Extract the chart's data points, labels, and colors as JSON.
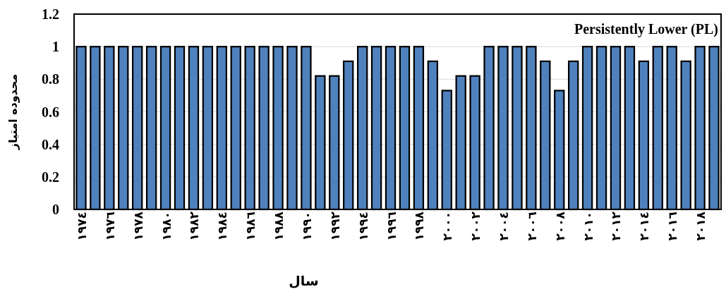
{
  "chart_data": {
    "type": "bar",
    "title": "Persistently Lower (PL)",
    "xlabel": "سال",
    "ylabel": "محدوده امتیاز",
    "categories": [
      "١٩٧٤",
      null,
      "١٩٧٦",
      null,
      "١٩٧٨",
      null,
      "١٩٨٠",
      null,
      "١٩٨٢",
      null,
      "١٩٨٤",
      null,
      "١٩٨٦",
      null,
      "١٩٨٨",
      null,
      "١٩٩٠",
      null,
      "١٩٩٢",
      null,
      "١٩٩٤",
      null,
      "١٩٩٦",
      null,
      "١٩٩٨",
      null,
      "٢٠٠٠",
      null,
      "٢٠٠٢",
      null,
      "٢٠٠٤",
      null,
      "٢٠٠٦",
      null,
      "٢٠٠٨",
      null,
      "٢٠١٠",
      null,
      "٢٠١٢",
      null,
      "٢٠١٤",
      null,
      "٢٠١٦",
      null,
      "٢٠١٨",
      null
    ],
    "values": [
      1,
      1,
      1,
      1,
      1,
      1,
      1,
      1,
      1,
      1,
      1,
      1,
      1,
      1,
      1,
      1,
      1,
      0.82,
      0.82,
      0.91,
      1,
      1,
      1,
      1,
      1,
      0.91,
      0.73,
      0.82,
      0.82,
      1,
      1,
      1,
      1,
      0.91,
      0.73,
      0.91,
      1,
      1,
      1,
      1,
      0.91,
      1,
      1,
      0.91,
      1,
      1
    ],
    "color": "#4f81bd",
    "ylim": [
      0,
      1.2
    ],
    "yticks": [
      0,
      0.2,
      0.4,
      0.6,
      0.8,
      1,
      1.2
    ],
    "grid": "y"
  }
}
